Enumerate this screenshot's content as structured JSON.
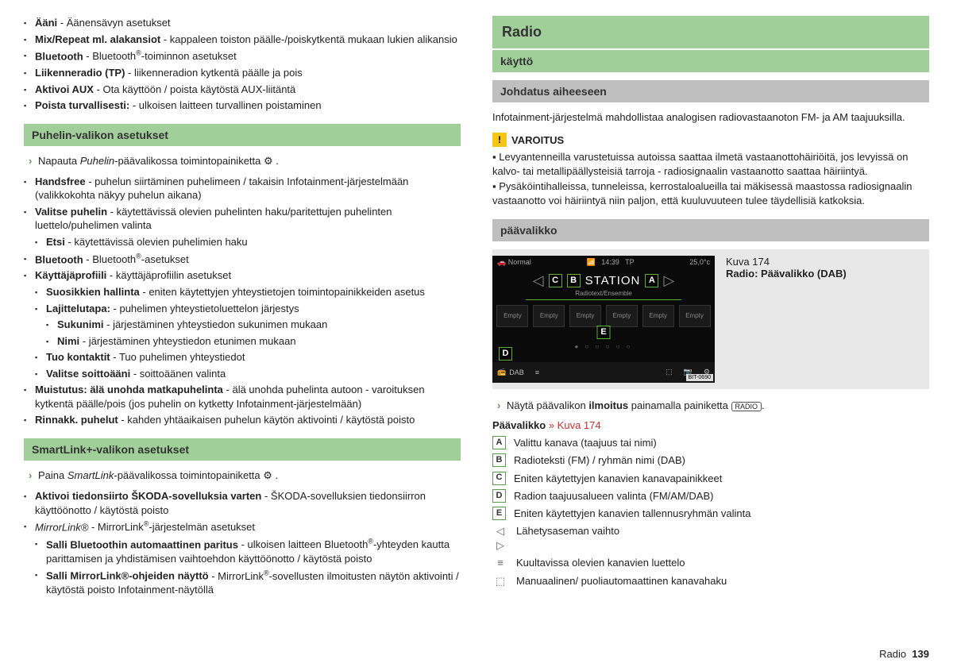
{
  "left": {
    "items1": [
      {
        "b": "Ääni",
        "t": " - Äänensävyn asetukset"
      },
      {
        "b": "Mix/Repeat ml. alakansiot",
        "t": " - kappaleen toiston päälle-/poiskytkentä mukaan lukien alikansio"
      },
      {
        "b": "Bluetooth",
        "t": " - Bluetooth®-toiminnon asetukset"
      },
      {
        "b": "Liikenneradio (TP)",
        "t": " - liikenneradion kytkentä päälle ja pois"
      },
      {
        "b": "Aktivoi AUX",
        "t": " - Ota käyttöön / poista käytöstä AUX-liitäntä"
      },
      {
        "b": "Poista turvallisesti:",
        "t": " - ulkoisen laitteen turvallinen poistaminen"
      }
    ],
    "sec1": "Puhelin-valikon asetukset",
    "instr1a": "Napauta ",
    "instr1b": "Puhelin",
    "instr1c": "-päävalikossa toimintopainiketta ",
    "items2": [
      {
        "b": "Handsfree",
        "t": " - puhelun siirtäminen puhelimeen / takaisin Infotainment-järjestelmään (valikkokohta näkyy puhelun aikana)"
      },
      {
        "b": "Valitse puhelin",
        "t": " - käytettävissä olevien puhelinten haku/paritettujen puhelinten luettelo/puhelimen valinta",
        "sub": [
          {
            "b": "Etsi",
            "t": " - käytettävissä olevien puhelimien haku"
          }
        ]
      },
      {
        "b": "Bluetooth",
        "t": " - Bluetooth®-asetukset"
      },
      {
        "b": "Käyttäjäprofiili",
        "t": " - käyttäjäprofiilin asetukset",
        "sub": [
          {
            "b": "Suosikkien hallinta",
            "t": " - eniten käytettyjen yhteystietojen toimintopainikkeiden asetus"
          },
          {
            "b": "Lajittelutapa:",
            "t": " - puhelimen yhteystietoluettelon järjestys",
            "sub": [
              {
                "b": "Sukunimi",
                "t": " - järjestäminen yhteystiedon sukunimen mukaan"
              },
              {
                "b": "Nimi",
                "t": " - järjestäminen yhteystiedon etunimen mukaan"
              }
            ]
          },
          {
            "b": "Tuo kontaktit",
            "t": " - Tuo puhelimen yhteystiedot"
          },
          {
            "b": "Valitse soittoääni",
            "t": " - soittoäänen valinta"
          }
        ]
      },
      {
        "b": "Muistutus: älä unohda matkapuhelinta",
        "t": " - älä unohda puhelinta autoon - varoituksen kytkentä päälle/pois (jos puhelin on kytketty Infotainment-järjestelmään)"
      },
      {
        "b": "Rinnakk. puhelut",
        "t": " - kahden yhtäaikaisen puhelun käytön aktivointi / käytöstä poisto"
      }
    ],
    "sec2": "SmartLink+-valikon asetukset",
    "instr2a": "Paina ",
    "instr2b": "SmartLink",
    "instr2c": "-päävalikossa toimintopainiketta ",
    "items3": [
      {
        "b": "Aktivoi tiedonsiirto ŠKODA-sovelluksia varten",
        "t": " - ŠKODA-sovelluksien tiedonsiirron käyttöönotto / käytöstä poisto"
      },
      {
        "b": "MirrorLink®",
        "i": true,
        "t": " - MirrorLink®-järjestelmän asetukset",
        "sub": [
          {
            "b": "Salli Bluetoothin automaattinen paritus",
            "t": " - ulkoisen laitteen Bluetooth®-yhteyden kautta parittamisen ja yhdistämisen vaihtoehdon käyttöönotto / käytöstä poisto"
          },
          {
            "b": "Salli MirrorLink®-ohjeiden näyttö",
            "t": " - MirrorLink®-sovellusten ilmoitusten näytön aktivointi / käytöstä poisto Infotainment-näytöllä"
          }
        ]
      }
    ]
  },
  "right": {
    "h1": "Radio",
    "h2": "käyttö",
    "h3": "Johdatus aiheeseen",
    "intro": "Infotainment-järjestelmä mahdollistaa analogisen radiovastaanoton FM- ja AM taajuuksilla.",
    "warnTitle": "VAROITUS",
    "warn1": "Levyantenneilla varustetuissa autoissa saattaa ilmetä vastaanottohäiriöitä, jos levyissä on kalvo- tai metallipäällysteisiä tarroja - radiosignaalin vastaanotto saattaa häiriintyä.",
    "warn2": "Pysäköintihalleissa, tunneleissa, kerrostaloalueilla tai mäkisessä maastossa radiosignaalin vastaanotto voi häiriintyä niin paljon, että kuuluvuuteen tulee täydellisiä katkoksia.",
    "h4": "päävalikko",
    "fig": {
      "normal": "Normal",
      "time": "14:39",
      "tp": "TP",
      "temp": "25,0°c",
      "station": "STATION",
      "sub": "Radiotext/Ensemble",
      "empty": "Empty",
      "dab": "DAB",
      "bit": "BIT-0690",
      "A": "A",
      "B": "B",
      "C": "C",
      "D": "D",
      "E": "E"
    },
    "figCap1": "Kuva 174",
    "figCap2": "Radio: Päävalikko (DAB)",
    "show1": "Näytä päävalikon ",
    "show2": "ilmoitus",
    "show3": " painamalla painiketta ",
    "radioBtn": "RADIO",
    "legendTitle1": "Päävalikko ",
    "legendTitle2": "» Kuva 174",
    "keys": [
      {
        "k": "A",
        "t": "Valittu kanava (taajuus tai nimi)"
      },
      {
        "k": "B",
        "t": "Radioteksti (FM) / ryhmän nimi (DAB)"
      },
      {
        "k": "C",
        "t": "Eniten käytettyjen kanavien kanavapainikkeet"
      },
      {
        "k": "D",
        "t": "Radion taajuusalueen valinta (FM/AM/DAB)"
      },
      {
        "k": "E",
        "t": "Eniten käytettyjen kanavien tallennusryhmän valinta"
      }
    ],
    "syms": [
      {
        "s": "◁ ▷",
        "t": "Lähetysaseman vaihto"
      },
      {
        "s": "≡",
        "t": "Kuultavissa olevien kanavien luettelo"
      },
      {
        "s": "⬚",
        "t": "Manuaalinen/ puoliautomaattinen kanavahaku"
      }
    ]
  },
  "footer": {
    "label": "Radio",
    "page": "139"
  }
}
